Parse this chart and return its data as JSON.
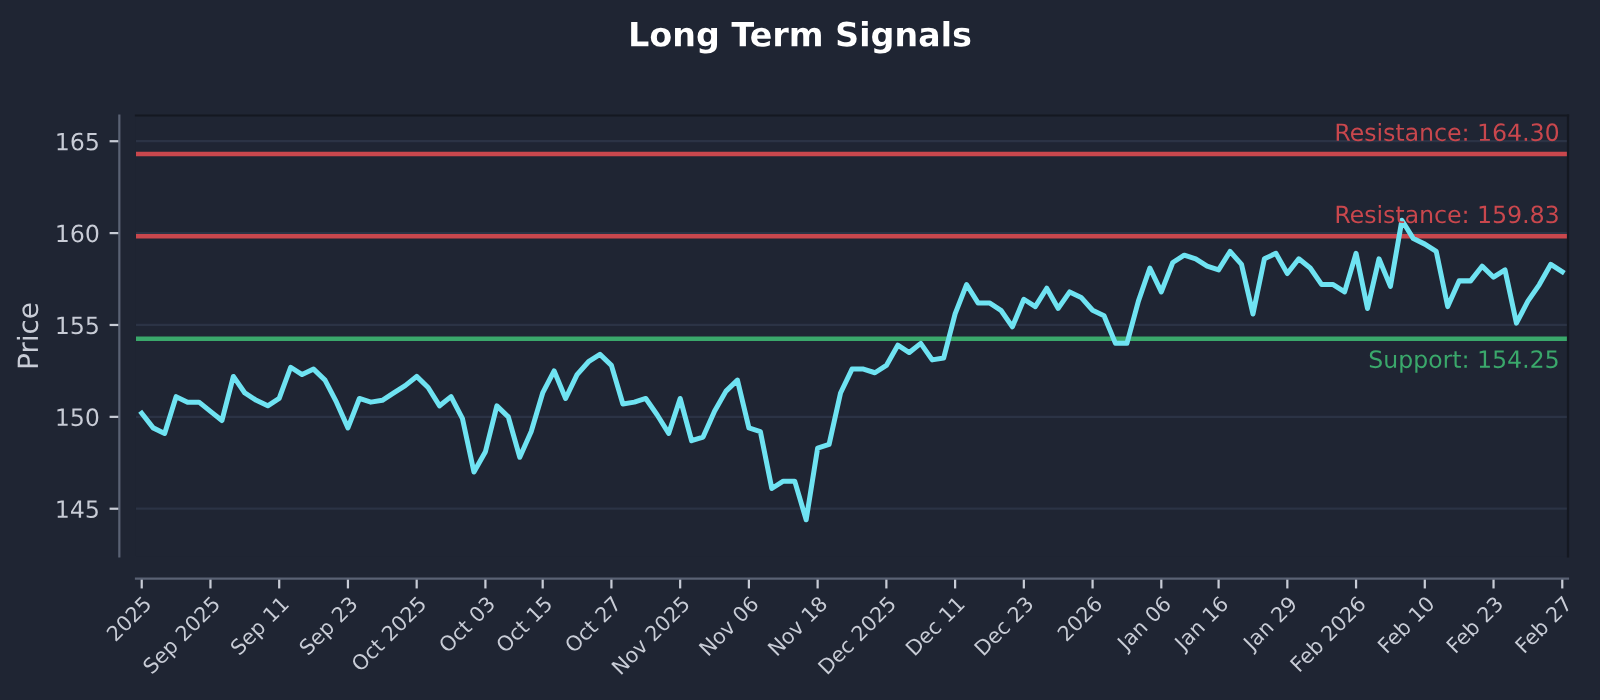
{
  "chart_data": {
    "type": "line",
    "title": "Long Term Signals",
    "ylabel": "Price",
    "categories": [
      "2025",
      null,
      null,
      null,
      null,
      null,
      "Sep 2025",
      null,
      null,
      null,
      null,
      null,
      "Sep 11",
      null,
      null,
      null,
      null,
      null,
      "Sep 23",
      null,
      null,
      null,
      null,
      null,
      "Oct 2025",
      null,
      null,
      null,
      null,
      null,
      "Oct 03",
      null,
      null,
      null,
      null,
      "Oct 15",
      null,
      null,
      null,
      null,
      null,
      "Oct 27",
      null,
      null,
      null,
      null,
      null,
      "Nov 2025",
      null,
      null,
      null,
      null,
      null,
      "Nov 06",
      null,
      null,
      null,
      null,
      null,
      "Nov 18",
      null,
      null,
      null,
      null,
      null,
      "Dec 2025",
      null,
      null,
      null,
      null,
      null,
      "Dec 11",
      null,
      null,
      null,
      null,
      null,
      "Dec 23",
      null,
      null,
      null,
      null,
      null,
      "2026",
      null,
      null,
      null,
      null,
      null,
      "Jan 06",
      null,
      null,
      null,
      null,
      "Jan 16",
      null,
      null,
      null,
      null,
      null,
      "Jan 29",
      null,
      null,
      null,
      null,
      null,
      "Feb 2026",
      null,
      null,
      null,
      null,
      null,
      "Feb 10",
      null,
      null,
      null,
      null,
      null,
      "Feb 23",
      null,
      null,
      null,
      null,
      null,
      "Feb 27"
    ],
    "series": [
      {
        "color": "#6fe3f2",
        "values": [
          150.2,
          149.4,
          149.1,
          151.1,
          150.8,
          150.8,
          150.3,
          149.8,
          152.2,
          151.3,
          150.9,
          150.6,
          151.0,
          152.7,
          152.3,
          152.6,
          152.0,
          150.8,
          149.4,
          151.0,
          150.8,
          150.9,
          151.3,
          151.7,
          152.2,
          151.6,
          150.6,
          151.1,
          149.9,
          147.0,
          148.1,
          150.6,
          150.0,
          147.8,
          149.2,
          151.3,
          152.5,
          151.0,
          152.3,
          153.0,
          153.4,
          152.8,
          150.7,
          150.8,
          151.0,
          150.1,
          149.1,
          151.0,
          148.7,
          148.9,
          150.3,
          151.4,
          152.0,
          149.4,
          149.2,
          146.1,
          146.5,
          146.5,
          144.4,
          148.3,
          148.5,
          151.3,
          152.6,
          152.6,
          152.4,
          152.8,
          153.9,
          153.5,
          154.0,
          153.1,
          153.2,
          155.6,
          157.2,
          156.2,
          156.2,
          155.8,
          154.9,
          156.4,
          156.0,
          157.0,
          155.9,
          156.8,
          156.5,
          155.8,
          155.5,
          154.0,
          154.0,
          156.3,
          158.1,
          156.8,
          158.4,
          158.8,
          158.6,
          158.2,
          158.0,
          159.0,
          158.3,
          155.6,
          158.6,
          158.9,
          157.8,
          158.6,
          158.1,
          157.2,
          157.2,
          156.8,
          158.9,
          155.9,
          158.6,
          157.1,
          160.7,
          159.7,
          159.4,
          159.0,
          156.0,
          157.4,
          157.4,
          158.2,
          157.6,
          158.0,
          155.1,
          156.3,
          157.2,
          158.3,
          157.9
        ]
      }
    ],
    "ylim": [
      142.4,
      166.4
    ],
    "yticks": [
      145,
      150,
      155,
      160,
      165
    ],
    "grid": "y",
    "marker": "none",
    "line_style": "solid",
    "legend": false,
    "ref_lines": [
      {
        "axis": "y",
        "value": 164.3,
        "label": "Resistance: 164.30",
        "color": "#c9474d"
      },
      {
        "axis": "y",
        "value": 159.83,
        "label": "Resistance: 159.83",
        "color": "#c9474d"
      },
      {
        "axis": "y",
        "value": 154.25,
        "label": "Support: 154.25",
        "color": "#3aa86b"
      }
    ]
  }
}
